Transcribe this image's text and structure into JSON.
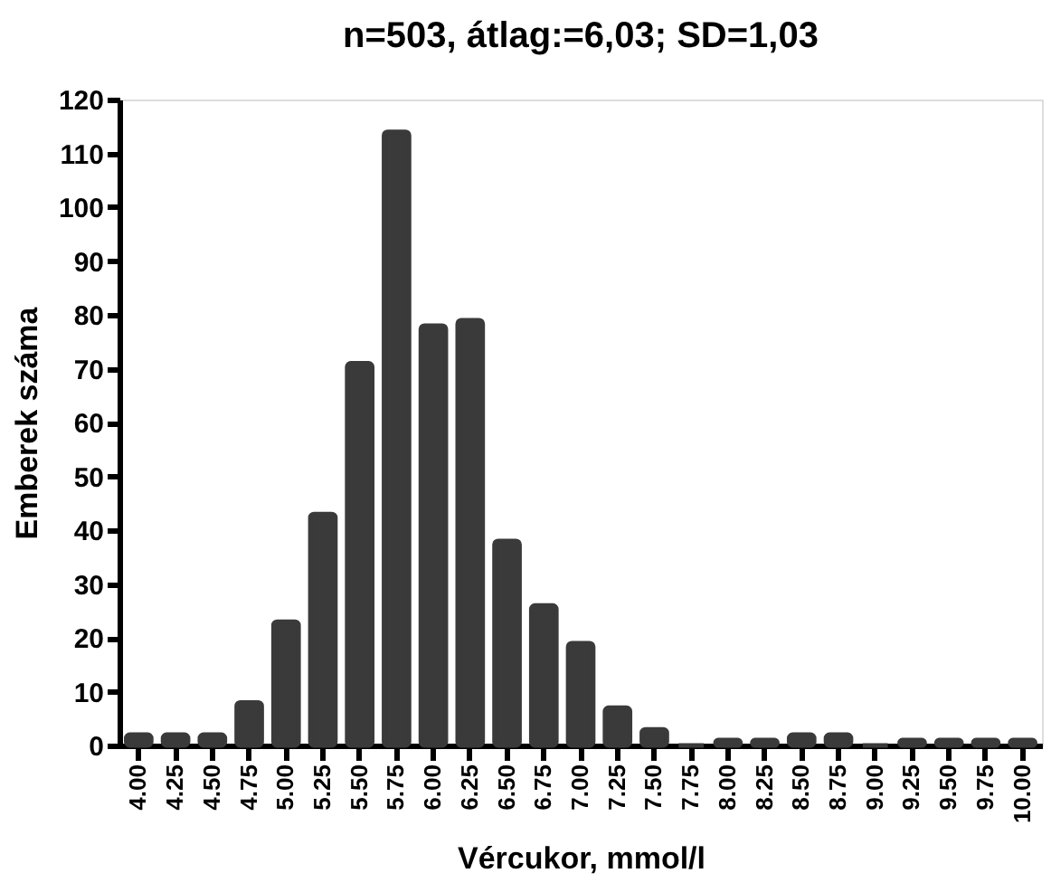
{
  "chart_data": {
    "type": "bar",
    "title": "n=503, átlag:=6,03; SD=1,03",
    "xlabel": "Vércukor, mmol/l",
    "ylabel": "Emberek száma",
    "categories": [
      "4.00",
      "4.25",
      "4.50",
      "4.75",
      "5.00",
      "5.25",
      "5.50",
      "5.75",
      "6.00",
      "6.25",
      "6.50",
      "6.75",
      "7.00",
      "7.25",
      "7.50",
      "7.75",
      "8.00",
      "8.25",
      "8.50",
      "8.75",
      "9.00",
      "9.25",
      "9.50",
      "9.75",
      "10.00"
    ],
    "values": [
      2,
      2,
      2,
      8,
      23,
      43,
      71,
      114,
      78,
      79,
      38,
      26,
      19,
      7,
      3,
      0,
      1,
      1,
      2,
      2,
      0,
      1,
      1,
      1,
      1
    ],
    "color": "#3a3a3a",
    "ylim": [
      0,
      120
    ],
    "yticks": [
      0,
      10,
      20,
      30,
      40,
      50,
      60,
      70,
      80,
      90,
      100,
      110,
      120
    ],
    "grid": false
  }
}
